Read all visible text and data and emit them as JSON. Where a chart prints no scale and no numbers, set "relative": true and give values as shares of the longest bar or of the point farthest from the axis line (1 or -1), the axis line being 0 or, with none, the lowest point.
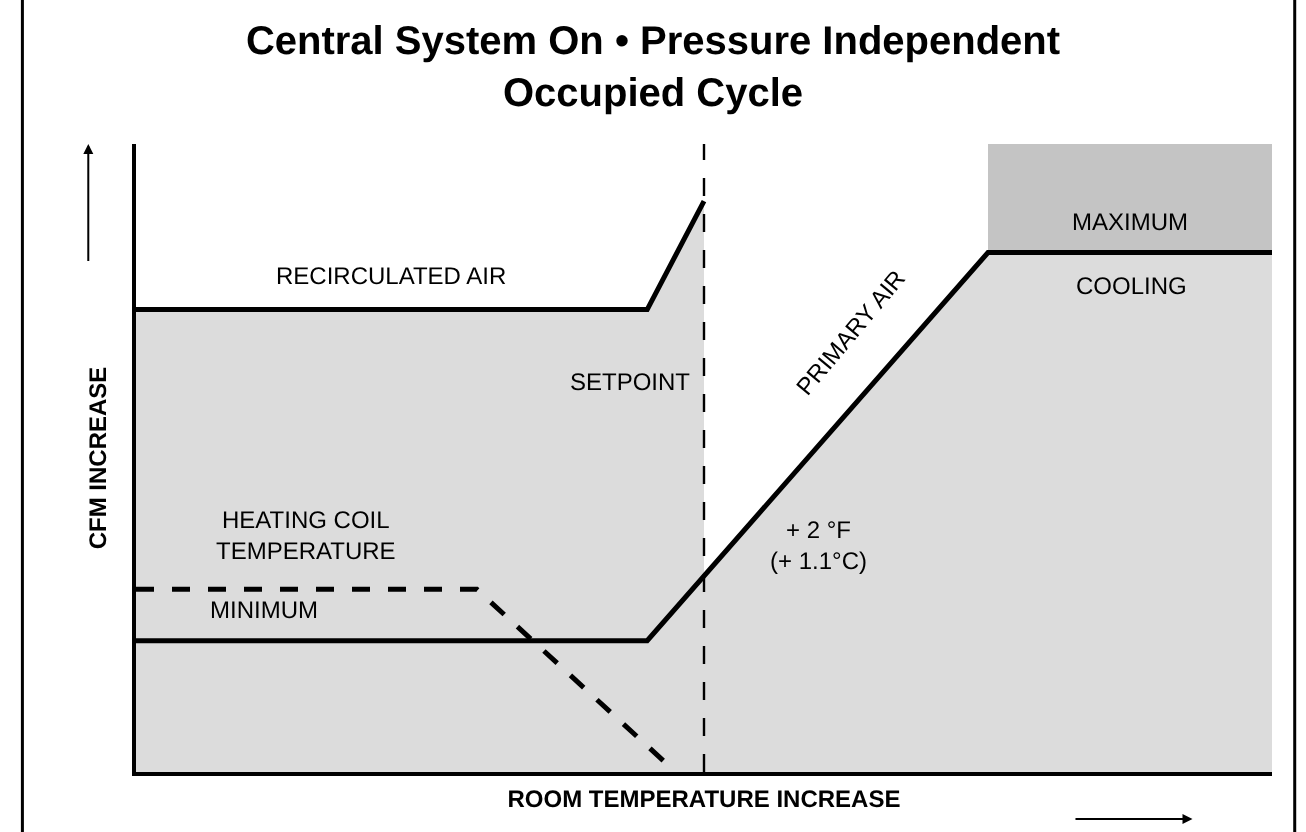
{
  "chart_data": {
    "type": "area",
    "title": "Central System On • Pressure Independent\nOccupied Cycle",
    "xlabel": "ROOM TEMPERATURE INCREASE",
    "ylabel": "CFM INCREASE",
    "relative": true,
    "categories": [
      null,
      null,
      null,
      null,
      null,
      null,
      null,
      null,
      null,
      null,
      null,
      null,
      null,
      null,
      null,
      null,
      null,
      null,
      null,
      null,
      null,
      null,
      null,
      null,
      null,
      null,
      null,
      null,
      null,
      null,
      null,
      null,
      null,
      null,
      null,
      null,
      null,
      null,
      null,
      null,
      null
    ],
    "series": [
      {
        "name": "RECIRCULATED AIR",
        "color": "#000000",
        "values": [
          0.81,
          null,
          null,
          null,
          null,
          null,
          null,
          null,
          null,
          null,
          null,
          null,
          null,
          null,
          null,
          null,
          null,
          null,
          0.81,
          null,
          1,
          null,
          null,
          null,
          null,
          null,
          null,
          null,
          null,
          null,
          null,
          null,
          null,
          null,
          null,
          null,
          null,
          null,
          null,
          null,
          null
        ]
      },
      {
        "name": "PRIMARY AIR",
        "color": "#000000",
        "values": [
          0.23,
          null,
          null,
          null,
          null,
          null,
          null,
          null,
          null,
          null,
          null,
          null,
          null,
          null,
          null,
          null,
          null,
          null,
          0.23,
          null,
          null,
          null,
          null,
          null,
          null,
          null,
          null,
          null,
          null,
          null,
          0.91,
          null,
          null,
          null,
          null,
          null,
          null,
          null,
          null,
          null,
          0.91
        ]
      },
      {
        "name": "HEATING COIL\nTEMPERATURE",
        "type": "line",
        "color": "#000000",
        "line_style": "dashed",
        "values": [
          0.32,
          null,
          null,
          null,
          null,
          null,
          null,
          null,
          null,
          null,
          null,
          null,
          0.32,
          null,
          null,
          null,
          null,
          null,
          null,
          0,
          null,
          null,
          null,
          null,
          null,
          null,
          null,
          null,
          null,
          null,
          null,
          null,
          null,
          null,
          null,
          null,
          null,
          null,
          null,
          null,
          null
        ]
      }
    ],
    "annotations": [
      "MINIMUM",
      "MAXIMUM",
      "+ 2 °F\n(+ 1.1°C)",
      "SETPOINT",
      "COOLING"
    ],
    "grid": false,
    "legend": false
  }
}
